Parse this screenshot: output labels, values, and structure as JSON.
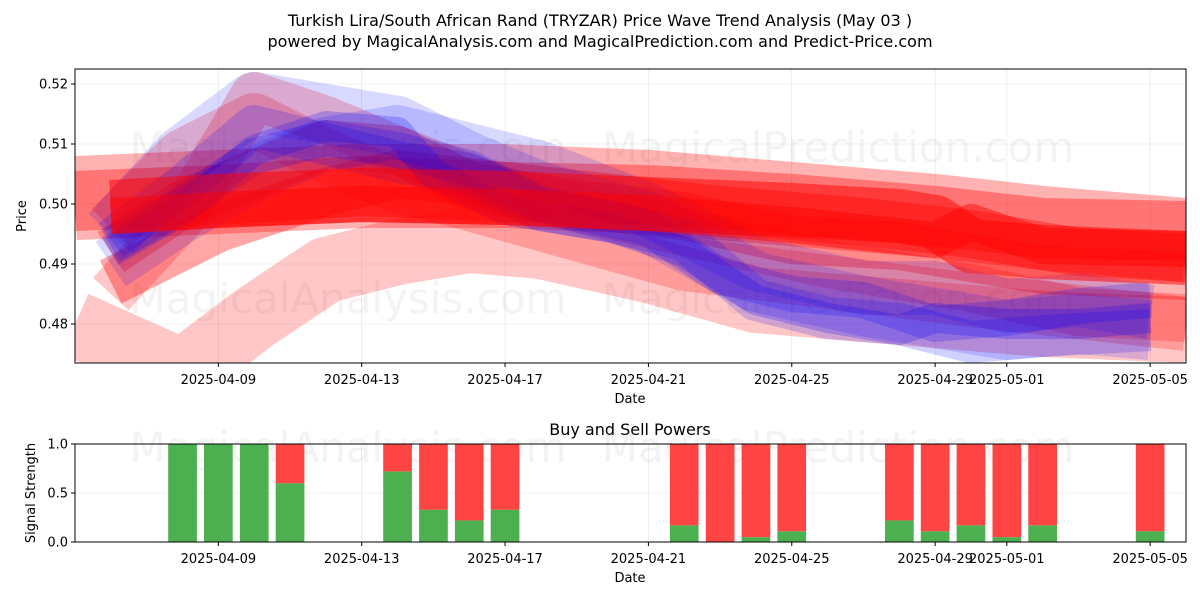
{
  "title": "Turkish Lira/South African Rand (TRYZAR) Price Wave Trend Analysis (May 03 )",
  "subtitle": "powered by MagicalAnalysis.com and MagicalPrediction.com and Predict-Price.com",
  "watermarks": [
    "MagicalAnalysis.com",
    "MagicalPrediction.com"
  ],
  "chart_data": [
    {
      "type": "area",
      "panel": "price",
      "xlabel": "Date",
      "ylabel": "Price",
      "ylim": [
        0.4735,
        0.5225
      ],
      "x_range": [
        "2025-04-05",
        "2025-05-06"
      ],
      "y_ticks": [
        0.48,
        0.49,
        0.5,
        0.51,
        0.52
      ],
      "y_tick_labels": [
        "0.48",
        "0.49",
        "0.50",
        "0.51",
        "0.52"
      ],
      "x_ticks": [
        "2025-04-09",
        "2025-04-13",
        "2025-04-17",
        "2025-04-21",
        "2025-04-25",
        "2025-04-29",
        "2025-05-01",
        "2025-05-05"
      ],
      "grid": true,
      "colors": {
        "red": "#ff0000",
        "blue": "#0000ff"
      },
      "series": [
        {
          "color": "red",
          "alpha": 0.22,
          "width": 0.011,
          "x": [
            "2025-04-05",
            "2025-04-08",
            "2025-04-10",
            "2025-04-12",
            "2025-04-14",
            "2025-04-16",
            "2025-04-18",
            "2025-04-21",
            "2025-04-24",
            "2025-04-28",
            "2025-05-02",
            "2025-05-06"
          ],
          "y": [
            0.48,
            0.472,
            0.481,
            0.489,
            0.492,
            0.494,
            0.493,
            0.489,
            0.484,
            0.482,
            0.48,
            0.479
          ]
        },
        {
          "color": "red",
          "alpha": 0.22,
          "width": 0.008,
          "x": [
            "2025-04-06",
            "2025-04-08",
            "2025-04-10",
            "2025-04-12",
            "2025-04-14",
            "2025-04-17",
            "2025-04-20",
            "2025-04-23",
            "2025-04-26",
            "2025-04-30",
            "2025-05-03",
            "2025-05-06"
          ],
          "y": [
            0.485,
            0.498,
            0.518,
            0.514,
            0.509,
            0.502,
            0.498,
            0.494,
            0.49,
            0.486,
            0.482,
            0.481
          ]
        },
        {
          "color": "red",
          "alpha": 0.3,
          "width": 0.014,
          "x": [
            "2025-04-05",
            "2025-04-09",
            "2025-04-13",
            "2025-04-17",
            "2025-04-21",
            "2025-04-25",
            "2025-04-29",
            "2025-05-02",
            "2025-05-06"
          ],
          "y": [
            0.501,
            0.502,
            0.503,
            0.503,
            0.502,
            0.5,
            0.498,
            0.496,
            0.494
          ]
        },
        {
          "color": "red",
          "alpha": 0.35,
          "width": 0.01,
          "x": [
            "2025-04-05",
            "2025-04-09",
            "2025-04-13",
            "2025-04-17",
            "2025-04-21",
            "2025-04-25",
            "2025-04-29",
            "2025-05-02",
            "2025-05-06"
          ],
          "y": [
            0.5005,
            0.5015,
            0.503,
            0.502,
            0.5015,
            0.5,
            0.498,
            0.496,
            0.4955
          ]
        },
        {
          "color": "red",
          "alpha": 0.35,
          "width": 0.008,
          "x": [
            "2025-04-06",
            "2025-04-09",
            "2025-04-12",
            "2025-04-14",
            "2025-04-17",
            "2025-04-20",
            "2025-04-23",
            "2025-04-27",
            "2025-04-30",
            "2025-05-03",
            "2025-05-06"
          ],
          "y": [
            0.487,
            0.496,
            0.502,
            0.505,
            0.503,
            0.501,
            0.499,
            0.497,
            0.495,
            0.492,
            0.491
          ]
        },
        {
          "color": "red",
          "alpha": 0.3,
          "width": 0.008,
          "x": [
            "2025-04-06",
            "2025-04-08",
            "2025-04-10",
            "2025-04-12",
            "2025-04-14",
            "2025-04-16",
            "2025-04-19",
            "2025-04-22",
            "2025-04-25",
            "2025-04-28",
            "2025-04-30",
            "2025-05-02",
            "2025-05-06"
          ],
          "y": [
            0.492,
            0.5,
            0.505,
            0.51,
            0.509,
            0.503,
            0.5,
            0.498,
            0.494,
            0.493,
            0.491,
            0.489,
            0.488
          ]
        },
        {
          "color": "red",
          "alpha": 0.22,
          "width": 0.009,
          "x": [
            "2025-04-06",
            "2025-04-08",
            "2025-04-10",
            "2025-04-12",
            "2025-04-14",
            "2025-04-16",
            "2025-04-19",
            "2025-04-22",
            "2025-04-26",
            "2025-04-30",
            "2025-05-03",
            "2025-05-06"
          ],
          "y": [
            0.496,
            0.508,
            0.514,
            0.508,
            0.503,
            0.5,
            0.495,
            0.49,
            0.487,
            0.484,
            0.482,
            0.48
          ]
        },
        {
          "color": "blue",
          "alpha": 0.15,
          "width": 0.01,
          "x": [
            "2025-04-06",
            "2025-04-08",
            "2025-04-10",
            "2025-04-12",
            "2025-04-14",
            "2025-04-16",
            "2025-04-18",
            "2025-04-21",
            "2025-04-24",
            "2025-04-27",
            "2025-04-29",
            "2025-05-01",
            "2025-05-03",
            "2025-05-05"
          ],
          "y": [
            0.495,
            0.508,
            0.517,
            0.515,
            0.513,
            0.507,
            0.502,
            0.497,
            0.487,
            0.483,
            0.481,
            0.479,
            0.48,
            0.479
          ]
        },
        {
          "color": "blue",
          "alpha": 0.15,
          "width": 0.009,
          "x": [
            "2025-04-06",
            "2025-04-08",
            "2025-04-10",
            "2025-04-12",
            "2025-04-14",
            "2025-04-16",
            "2025-04-18",
            "2025-04-21",
            "2025-04-24",
            "2025-04-27",
            "2025-04-29",
            "2025-05-01",
            "2025-05-03",
            "2025-05-05"
          ],
          "y": [
            0.49,
            0.498,
            0.505,
            0.51,
            0.512,
            0.509,
            0.506,
            0.499,
            0.49,
            0.486,
            0.486,
            0.483,
            0.484,
            0.482
          ]
        },
        {
          "color": "blue",
          "alpha": 0.18,
          "width": 0.007,
          "x": [
            "2025-04-06",
            "2025-04-08",
            "2025-04-10",
            "2025-04-12",
            "2025-04-14",
            "2025-04-16",
            "2025-04-18",
            "2025-04-20",
            "2025-04-22",
            "2025-04-24",
            "2025-04-26",
            "2025-04-28",
            "2025-04-30",
            "2025-05-02",
            "2025-05-05"
          ],
          "y": [
            0.494,
            0.503,
            0.513,
            0.51,
            0.507,
            0.505,
            0.499,
            0.497,
            0.494,
            0.484,
            0.481,
            0.48,
            0.477,
            0.478,
            0.479
          ]
        },
        {
          "color": "blue",
          "alpha": 0.2,
          "width": 0.006,
          "x": [
            "2025-04-06",
            "2025-04-08",
            "2025-04-10",
            "2025-04-12",
            "2025-04-14",
            "2025-04-16",
            "2025-04-18",
            "2025-04-21",
            "2025-04-23",
            "2025-04-25",
            "2025-04-27",
            "2025-04-29",
            "2025-05-01",
            "2025-05-03",
            "2025-05-05"
          ],
          "y": [
            0.493,
            0.5,
            0.508,
            0.511,
            0.509,
            0.506,
            0.5,
            0.496,
            0.488,
            0.485,
            0.484,
            0.48,
            0.481,
            0.483,
            0.484
          ]
        },
        {
          "color": "blue",
          "alpha": 0.22,
          "width": 0.005,
          "x": [
            "2025-04-06",
            "2025-04-08",
            "2025-04-10",
            "2025-04-12",
            "2025-04-14",
            "2025-04-15",
            "2025-04-17",
            "2025-04-20",
            "2025-04-22",
            "2025-04-24",
            "2025-04-26",
            "2025-04-28",
            "2025-04-29",
            "2025-05-01",
            "2025-05-03",
            "2025-05-05"
          ],
          "y": [
            0.492,
            0.499,
            0.509,
            0.513,
            0.512,
            0.505,
            0.499,
            0.496,
            0.492,
            0.484,
            0.481,
            0.479,
            0.481,
            0.48,
            0.48,
            0.481
          ]
        },
        {
          "color": "red",
          "alpha": 0.5,
          "width": 0.009,
          "x": [
            "2025-04-06",
            "2025-04-09",
            "2025-04-13",
            "2025-04-17",
            "2025-04-21",
            "2025-04-25",
            "2025-04-28",
            "2025-04-29",
            "2025-04-30",
            "2025-05-02",
            "2025-05-06"
          ],
          "y": [
            0.4995,
            0.5005,
            0.5015,
            0.501,
            0.5,
            0.499,
            0.498,
            0.497,
            0.493,
            0.492,
            0.491
          ]
        },
        {
          "color": "red",
          "alpha": 0.45,
          "width": 0.006,
          "x": [
            "2025-04-06",
            "2025-04-09",
            "2025-04-13",
            "2025-04-17",
            "2025-04-21",
            "2025-04-25",
            "2025-04-29",
            "2025-04-30",
            "2025-05-02",
            "2025-05-06"
          ],
          "y": [
            0.498,
            0.499,
            0.5,
            0.4995,
            0.4985,
            0.4965,
            0.494,
            0.497,
            0.493,
            0.4925
          ]
        }
      ]
    },
    {
      "type": "bar",
      "panel": "signal",
      "title": "Buy and Sell Powers",
      "xlabel": "Date",
      "ylabel": "Signal Strength",
      "ylim": [
        0,
        1
      ],
      "y_ticks": [
        0.0,
        0.5,
        1.0
      ],
      "y_tick_labels": [
        "0.0",
        "0.5",
        "1.0"
      ],
      "x_ticks": [
        "2025-04-09",
        "2025-04-13",
        "2025-04-17",
        "2025-04-21",
        "2025-04-25",
        "2025-04-29",
        "2025-05-01",
        "2025-05-05"
      ],
      "x_range": [
        "2025-04-05",
        "2025-05-06"
      ],
      "grid": true,
      "colors": {
        "buy": "#4caf50",
        "sell": "#ff4444"
      },
      "categories": [
        "2025-04-08",
        "2025-04-09",
        "2025-04-10",
        "2025-04-11",
        "2025-04-14",
        "2025-04-15",
        "2025-04-16",
        "2025-04-17",
        "2025-04-22",
        "2025-04-23",
        "2025-04-24",
        "2025-04-25",
        "2025-04-28",
        "2025-04-29",
        "2025-04-30",
        "2025-05-01",
        "2025-05-02",
        "2025-05-05"
      ],
      "buy": [
        1.0,
        1.0,
        1.0,
        0.6,
        0.72,
        0.33,
        0.22,
        0.33,
        0.17,
        0.0,
        0.05,
        0.11,
        0.22,
        0.11,
        0.17,
        0.05,
        0.17,
        0.11
      ],
      "sell": [
        0.0,
        0.0,
        0.0,
        0.4,
        0.28,
        0.67,
        0.78,
        0.67,
        0.83,
        1.0,
        0.95,
        0.89,
        0.78,
        0.89,
        0.83,
        0.95,
        0.83,
        0.89
      ]
    }
  ]
}
